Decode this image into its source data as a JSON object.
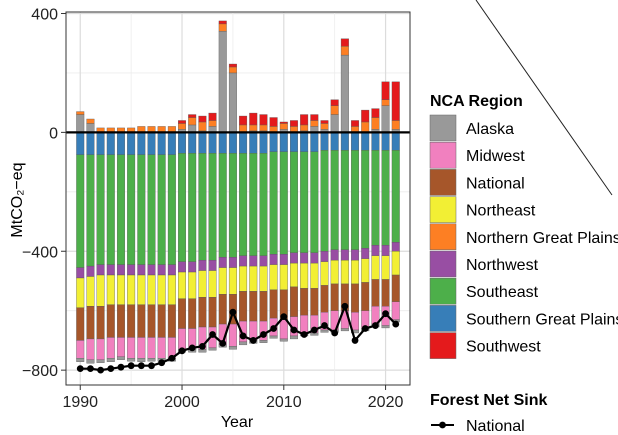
{
  "chart_data": {
    "type": "bar",
    "stacked": true,
    "xlabel": "Year",
    "ylabel": "MtCO₂−eq",
    "ylim": [
      -850,
      405
    ],
    "xlim": [
      1988.6,
      2022.4
    ],
    "x_ticks": [
      1990,
      2000,
      2010,
      2020
    ],
    "y_ticks": [
      -800,
      -400,
      0,
      400
    ],
    "grid": true,
    "legend_position": "right",
    "years": [
      1990,
      1991,
      1992,
      1993,
      1994,
      1995,
      1996,
      1997,
      1998,
      1999,
      2000,
      2001,
      2002,
      2003,
      2004,
      2005,
      2006,
      2007,
      2008,
      2009,
      2010,
      2011,
      2012,
      2013,
      2014,
      2015,
      2016,
      2017,
      2018,
      2019,
      2020,
      2021
    ],
    "stack_order": [
      "Southern Great Plains",
      "Southeast",
      "Northwest",
      "Northeast",
      "National",
      "Midwest",
      "Alaska_neg",
      "Alaska",
      "Northern Great Plains",
      "Southwest"
    ],
    "series": [
      {
        "name": "Alaska",
        "legend": "Alaska",
        "color": "#999999",
        "values": [
          60,
          30,
          0,
          0,
          0,
          0,
          0,
          0,
          0,
          0,
          10,
          25,
          5,
          20,
          340,
          200,
          0,
          5,
          5,
          0,
          10,
          0,
          5,
          20,
          10,
          60,
          260,
          0,
          0,
          10,
          90,
          10
        ]
      },
      {
        "name": "Alaska_neg",
        "legend": null,
        "color": "#999999",
        "values": [
          -12,
          -12,
          -10,
          -12,
          -10,
          -10,
          -12,
          -10,
          -10,
          -10,
          -10,
          -10,
          -10,
          -8,
          -8,
          -10,
          -10,
          -10,
          -8,
          -8,
          -8,
          -10,
          -10,
          -8,
          -8,
          -8,
          -8,
          -10,
          -8,
          -10,
          -8,
          -8
        ]
      },
      {
        "name": "Midwest",
        "legend": "Midwest",
        "color": "#f180bf",
        "values": [
          -60,
          -70,
          -70,
          -70,
          -65,
          -70,
          -70,
          -70,
          -70,
          -70,
          -70,
          -70,
          -75,
          -70,
          -70,
          -75,
          -70,
          -65,
          -65,
          -60,
          -65,
          -65,
          -60,
          -60,
          -60,
          -65,
          -60,
          -60,
          -60,
          -60,
          -65,
          -60
        ]
      },
      {
        "name": "National",
        "legend": "National",
        "color": "#a6562a",
        "values": [
          -110,
          -110,
          -110,
          -110,
          -110,
          -110,
          -110,
          -110,
          -110,
          -110,
          -100,
          -100,
          -100,
          -100,
          -100,
          -100,
          -100,
          -100,
          -100,
          -95,
          -100,
          -100,
          -90,
          -90,
          -90,
          -90,
          -90,
          -95,
          -95,
          -90,
          -90,
          -90
        ]
      },
      {
        "name": "Northeast",
        "legend": "Northeast",
        "color": "#f2ef34",
        "values": [
          -100,
          -100,
          -105,
          -100,
          -100,
          -100,
          -100,
          -100,
          -100,
          -100,
          -90,
          -90,
          -90,
          -90,
          -90,
          -90,
          -85,
          -85,
          -85,
          -85,
          -85,
          -80,
          -85,
          -85,
          -80,
          -80,
          -80,
          -80,
          -80,
          -80,
          -80,
          -80
        ]
      },
      {
        "name": "Northern Great Plains",
        "legend": "Northern Great Plains",
        "color": "#fd7f23",
        "values": [
          10,
          15,
          15,
          15,
          15,
          15,
          20,
          20,
          20,
          20,
          20,
          25,
          30,
          20,
          25,
          20,
          25,
          20,
          20,
          20,
          20,
          20,
          20,
          20,
          20,
          30,
          30,
          20,
          35,
          40,
          20,
          30
        ]
      },
      {
        "name": "Northwest",
        "legend": "Northwest",
        "color": "#984ea3",
        "values": [
          -35,
          -35,
          -35,
          -35,
          -35,
          -35,
          -35,
          -35,
          -35,
          -35,
          -35,
          -35,
          -35,
          -35,
          -35,
          -35,
          -35,
          -35,
          -35,
          -35,
          -35,
          -35,
          -35,
          -35,
          -35,
          -35,
          -35,
          -35,
          -35,
          -35,
          -35,
          -30
        ]
      },
      {
        "name": "Southeast",
        "legend": "Southeast",
        "color": "#4daf4a",
        "values": [
          -380,
          -375,
          -370,
          -370,
          -370,
          -370,
          -370,
          -370,
          -370,
          -370,
          -365,
          -365,
          -360,
          -360,
          -350,
          -350,
          -345,
          -345,
          -345,
          -345,
          -345,
          -340,
          -340,
          -340,
          -340,
          -335,
          -335,
          -335,
          -330,
          -320,
          -320,
          -310
        ]
      },
      {
        "name": "Southern Great Plains",
        "legend": "Southern Great Plains",
        "color": "#377eb8",
        "values": [
          -75,
          -75,
          -75,
          -75,
          -75,
          -75,
          -75,
          -75,
          -75,
          -75,
          -70,
          -70,
          -70,
          -70,
          -70,
          -70,
          -70,
          -70,
          -70,
          -65,
          -65,
          -65,
          -65,
          -65,
          -60,
          -60,
          -60,
          -60,
          -60,
          -60,
          -60,
          -60
        ]
      },
      {
        "name": "Southwest",
        "legend": "Southwest",
        "color": "#e41a1c",
        "values": [
          0,
          0,
          0,
          0,
          0,
          0,
          0,
          0,
          0,
          0,
          10,
          10,
          20,
          25,
          10,
          10,
          30,
          40,
          35,
          30,
          5,
          20,
          35,
          20,
          10,
          20,
          25,
          20,
          40,
          30,
          60,
          130
        ]
      },
      {
        "name": "National",
        "legend_group": "Forest Net Sink",
        "type": "line",
        "color": "#000000",
        "values": [
          -795,
          -795,
          -800,
          -795,
          -790,
          -785,
          -785,
          -785,
          -775,
          -760,
          -735,
          -725,
          -720,
          -680,
          -710,
          -605,
          -685,
          -700,
          -680,
          -660,
          -620,
          -665,
          -680,
          -665,
          -650,
          -675,
          -585,
          -700,
          -660,
          -650,
          -610,
          -645
        ]
      }
    ]
  },
  "legend": {
    "region_title": "NCA Region",
    "region_items": [
      {
        "label": "Alaska",
        "color": "#999999"
      },
      {
        "label": "Midwest",
        "color": "#f180bf"
      },
      {
        "label": "National",
        "color": "#a6562a"
      },
      {
        "label": "Northeast",
        "color": "#f2ef34"
      },
      {
        "label": "Northern Great Plains",
        "color": "#fd7f23"
      },
      {
        "label": "Northwest",
        "color": "#984ea3"
      },
      {
        "label": "Southeast",
        "color": "#4daf4a"
      },
      {
        "label": "Southern Great Plains",
        "color": "#377eb8"
      },
      {
        "label": "Southwest",
        "color": "#e41a1c"
      }
    ],
    "sink_title": "Forest Net Sink",
    "sink_items": [
      {
        "label": "National"
      }
    ]
  }
}
